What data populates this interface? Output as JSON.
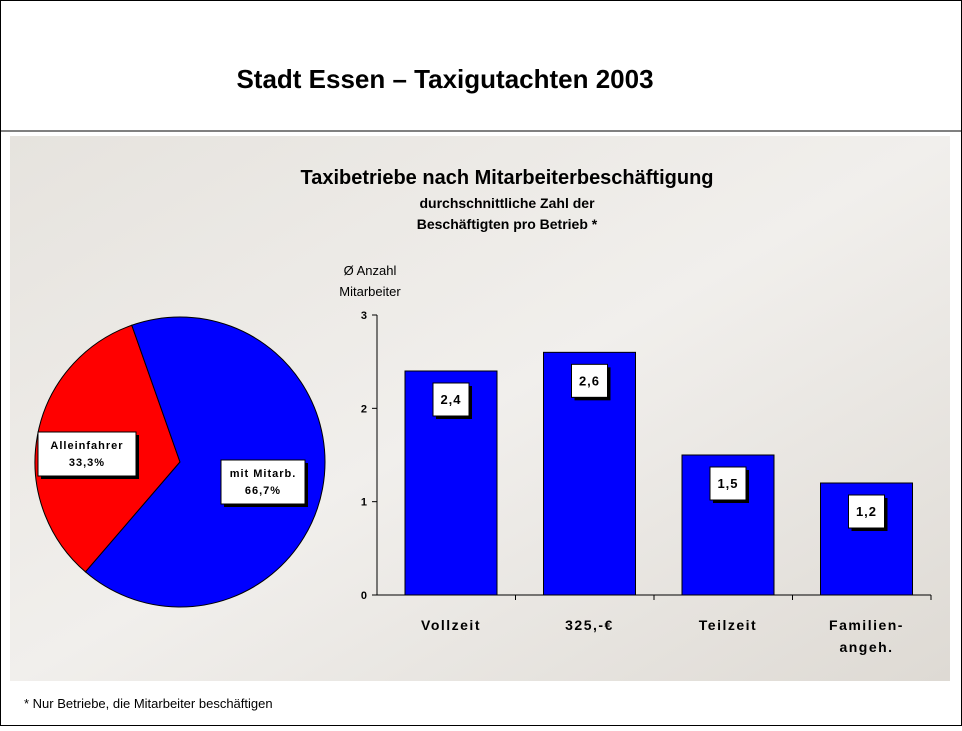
{
  "title": "Stadt Essen – Taxigutachten 2003",
  "footnote": "* Nur Betriebe, die Mitarbeiter beschäftigen",
  "chart_data": [
    {
      "type": "pie",
      "categories": [
        "Alleinfahrer",
        "mit Mitarb."
      ],
      "values": [
        33.3,
        66.7
      ],
      "value_labels": [
        "33,3%",
        "66,7%"
      ],
      "colors": [
        "#ff0000",
        "#0000ff"
      ]
    },
    {
      "type": "bar",
      "title": "Taxibetriebe nach Mitarbeiterbeschäftigung",
      "subtitle": "durchschnittliche Zahl der\nBeschäftigten pro Betrieb *",
      "ylabel": "Ø Anzahl\nMitarbeiter",
      "categories": [
        "Vollzeit",
        "325,-€",
        "Teilzeit",
        "Familien-\nangeh."
      ],
      "values": [
        2.4,
        2.6,
        1.5,
        1.2
      ],
      "value_labels": [
        "2,4",
        "2,6",
        "1,5",
        "1,2"
      ],
      "color": "#0000ff",
      "ylim": [
        0,
        3
      ],
      "yticks": [
        0,
        1,
        2,
        3
      ]
    }
  ]
}
